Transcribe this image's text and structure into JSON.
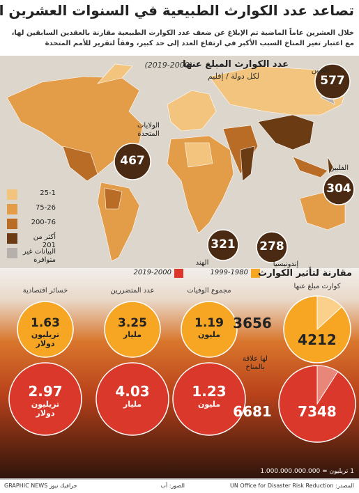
{
  "header": {
    "title": "تصاعد عدد الكوارث الطبيعية في السنوات العشرين الماضية",
    "subtitle": [
      "خلال العشرين عاماً الماضية تم الإبلاغ عن ضعف عدد الكوارث الطبيعية مقارنة بالعقدين السابقين لها،",
      "مع اعتبار تغير المناخ السبب الأكبر في ارتفاع العدد إلى حد كبير، وفقاً لتقرير للأمم المتحدة"
    ]
  },
  "map": {
    "title": "عدد الكوارث المبلغ عنها",
    "period": "(2019-2000)",
    "subtitle": "لكل دولة / إقليم",
    "countries": [
      {
        "name": "الصين",
        "value": 577
      },
      {
        "name": "الولايات المتحدة",
        "value": 467
      },
      {
        "name": "الفلبين",
        "value": 304
      },
      {
        "name": "الهند",
        "value": 321
      },
      {
        "name": "إندونيسيا",
        "value": 278
      }
    ],
    "legend": [
      {
        "label": "25-1",
        "color": "#f3c47e"
      },
      {
        "label": "75-26",
        "color": "#e39c48"
      },
      {
        "label": "200-76",
        "color": "#b96c25"
      },
      {
        "label": "أكثر من 201",
        "color": "#6b3b14"
      },
      {
        "label": "البيانات غير متوافرة",
        "color": "#b5b0ab"
      }
    ]
  },
  "comparison": {
    "title": "مقارنة لتأثير الكوارث",
    "periods": [
      {
        "label": "1999-1980",
        "color": "#f6a623"
      },
      {
        "label": "2019-2000",
        "color": "#d9382b"
      }
    ],
    "metrics": [
      {
        "label": "خسائر اقتصادية",
        "values": [
          1.63,
          2.97
        ],
        "unit": "تريليون دولار"
      },
      {
        "label": "عدد المتضررين",
        "values": [
          3.25,
          4.03
        ],
        "unit": "مليار"
      },
      {
        "label": "مجموع الوفيات",
        "values": [
          1.19,
          1.23
        ],
        "unit": "مليون"
      }
    ],
    "disasters": {
      "label": "كوارث مبلغ عنها",
      "totals": [
        4212,
        7348
      ],
      "climate": [
        3656,
        6681
      ],
      "climate_label": "لها علاقة بالمناخ"
    },
    "footnote": "1 تريليون = 1.000.000.000.000"
  },
  "footer": {
    "source": "المصدر: UN Office for Disaster Risk Reduction",
    "photos": "الصور: أب",
    "brand": "GRAPHIC NEWS جرافيك نيوز"
  }
}
